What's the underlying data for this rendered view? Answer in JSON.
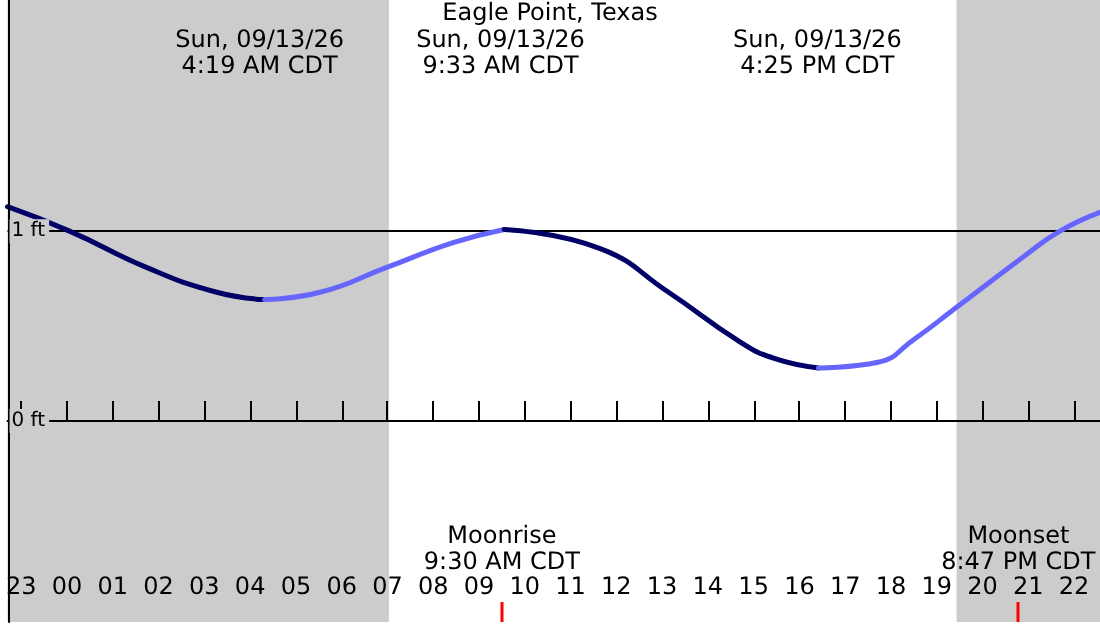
{
  "chart_data": {
    "type": "line",
    "title": "Eagle Point, Texas",
    "xlim": [
      "--09-12T22:42",
      "--09-13T22:34"
    ],
    "ylim": [
      -1.06,
      2.22
    ],
    "xticks": [
      {
        "value": "--09-12T23:00",
        "label": "23"
      },
      {
        "value": "--09-13T00:00",
        "label": "00"
      },
      {
        "value": "--09-13T01:00",
        "label": "01"
      },
      {
        "value": "--09-13T02:00",
        "label": "02"
      },
      {
        "value": "--09-13T03:00",
        "label": "03"
      },
      {
        "value": "--09-13T04:00",
        "label": "04"
      },
      {
        "value": "--09-13T05:00",
        "label": "05"
      },
      {
        "value": "--09-13T06:00",
        "label": "06"
      },
      {
        "value": "--09-13T07:00",
        "label": "07"
      },
      {
        "value": "--09-13T08:00",
        "label": "08"
      },
      {
        "value": "--09-13T09:00",
        "label": "09"
      },
      {
        "value": "--09-13T10:00",
        "label": "10"
      },
      {
        "value": "--09-13T11:00",
        "label": "11"
      },
      {
        "value": "--09-13T12:00",
        "label": "12"
      },
      {
        "value": "--09-13T13:00",
        "label": "13"
      },
      {
        "value": "--09-13T14:00",
        "label": "14"
      },
      {
        "value": "--09-13T15:00",
        "label": "15"
      },
      {
        "value": "--09-13T16:00",
        "label": "16"
      },
      {
        "value": "--09-13T17:00",
        "label": "17"
      },
      {
        "value": "--09-13T18:00",
        "label": "18"
      },
      {
        "value": "--09-13T19:00",
        "label": "19"
      },
      {
        "value": "--09-13T20:00",
        "label": "20"
      },
      {
        "value": "--09-13T21:00",
        "label": "21"
      },
      {
        "value": "--09-13T22:00",
        "label": "22"
      }
    ],
    "yticks": [
      {
        "value": 0,
        "label": "0 ft"
      },
      {
        "value": 1,
        "label": "1 ft"
      }
    ],
    "grid": "y",
    "series": [
      {
        "color": "#000066",
        "x": [
          "--09-12T22:42",
          "--09-13T00:04",
          "--09-13T01:44",
          "--09-13T03:15",
          "--09-13T04:19"
        ],
        "values": [
          1.13,
          1.0,
          0.81,
          0.68,
          0.64
        ]
      },
      {
        "color": "#6666ff",
        "x": [
          "--09-13T04:19",
          "--09-13T05:33",
          "--09-13T06:59",
          "--09-13T08:26",
          "--09-13T09:33"
        ],
        "values": [
          0.64,
          0.68,
          0.81,
          0.94,
          1.01
        ]
      },
      {
        "color": "#000066",
        "x": [
          "--09-13T09:33",
          "--09-13T11:38",
          "--09-13T13:08",
          "--09-13T14:41",
          "--09-13T15:27",
          "--09-13T16:25"
        ],
        "values": [
          1.01,
          0.91,
          0.68,
          0.42,
          0.33,
          0.28
        ]
      },
      {
        "color": "#6666ff",
        "x": [
          "--09-13T16:25",
          "--09-13T17:43",
          "--09-13T18:30",
          "--09-13T19:23",
          "--09-13T20:55",
          "--09-13T21:41",
          "--09-13T22:34"
        ],
        "values": [
          0.28,
          0.31,
          0.43,
          0.59,
          0.87,
          1.0,
          1.1
        ]
      }
    ],
    "bands": [
      {
        "axis": "x",
        "from": "--09-12T22:42",
        "to": "--09-13T07:02",
        "color": "#cccccc"
      },
      {
        "axis": "x",
        "from": "--09-13T19:26",
        "to": "--09-13T22:34",
        "color": "#cccccc"
      }
    ],
    "ref_lines": [
      {
        "axis": "x",
        "value": "--09-13T09:30",
        "label": "Moonrise\n9:30 AM CDT",
        "color": "#ff0000"
      },
      {
        "axis": "x",
        "value": "--09-13T20:47",
        "label": "Moonset\n8:47 PM CDT",
        "color": "#ff0000"
      }
    ],
    "annotations": [
      "Sun, 09/13/26\n4:19 AM CDT",
      "Sun, 09/13/26\n9:33 AM CDT",
      "Sun, 09/13/26\n4:25 PM CDT"
    ]
  }
}
